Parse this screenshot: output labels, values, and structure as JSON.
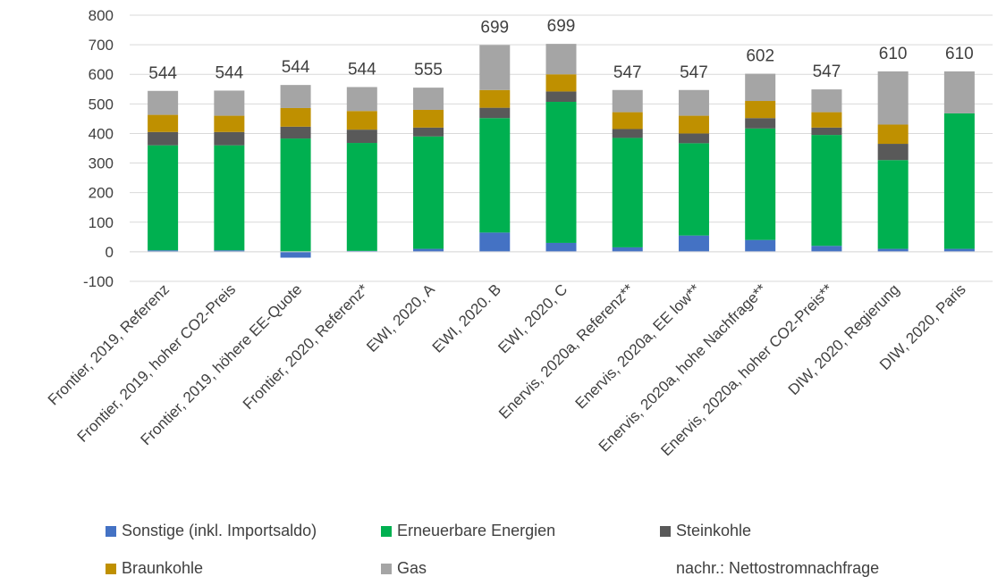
{
  "chart_data": {
    "type": "bar",
    "stacked": true,
    "categories": [
      "Frontier, 2019, Referenz",
      "Frontier, 2019, hoher CO2-Preis",
      "Frontier, 2019, höhere EE-Quote",
      "Frontier, 2020, Referenz*",
      "EWI, 2020, A",
      "EWI, 2020. B",
      "EWI, 2020, C",
      "Enervis, 2020a, Referenz**",
      "Enervis, 2020a, EE low**",
      "Enervis, 2020a, hohe Nachfrage**",
      "Enervis, 2020a, hoher CO2-Preis**",
      "DIW, 2020, Regierung",
      "DIW, 2020, Paris"
    ],
    "series": [
      {
        "name": "Sonstige (inkl. Importsaldo)",
        "color": "#4472C4",
        "values": [
          5,
          5,
          -20,
          3,
          10,
          65,
          30,
          15,
          55,
          40,
          20,
          10,
          10
        ]
      },
      {
        "name": "Erneuerbare Energien",
        "color": "#00B050",
        "values": [
          355,
          355,
          383,
          365,
          380,
          387,
          477,
          370,
          312,
          377,
          375,
          300,
          458
        ]
      },
      {
        "name": "Steinkohle",
        "color": "#595959",
        "values": [
          45,
          45,
          40,
          45,
          30,
          35,
          35,
          30,
          33,
          35,
          25,
          55,
          0
        ]
      },
      {
        "name": "Braunkohle",
        "color": "#BF9000",
        "values": [
          58,
          55,
          63,
          63,
          60,
          60,
          58,
          57,
          60,
          58,
          52,
          65,
          0
        ]
      },
      {
        "name": "Gas",
        "color": "#A5A5A5",
        "values": [
          81,
          85,
          78,
          81,
          75,
          152,
          103,
          75,
          87,
          92,
          77,
          180,
          142
        ]
      }
    ],
    "totals": {
      "name": "nachr.: Nettostromnachfrage",
      "values": [
        544,
        544,
        544,
        544,
        555,
        699,
        699,
        547,
        547,
        602,
        547,
        610,
        610
      ]
    },
    "ylim": [
      -100,
      800
    ],
    "yticks": [
      -100,
      0,
      100,
      200,
      300,
      400,
      500,
      600,
      700,
      800
    ],
    "title": "",
    "xlabel": "",
    "ylabel": "",
    "grid": true,
    "legend_position": "bottom"
  }
}
